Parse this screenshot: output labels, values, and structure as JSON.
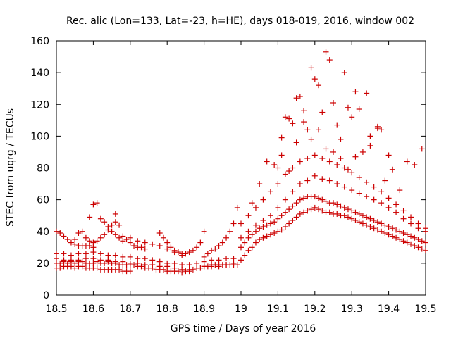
{
  "chart_data": {
    "type": "scatter",
    "title": "Rec. alic (Lon=133, Lat=-23, h=HE), days 018-019, 2016, window 002",
    "xlabel": "GPS time / Days of year 2016",
    "ylabel": "STEC from uqrg / TECUs",
    "xlim": [
      18.5,
      19.5
    ],
    "ylim": [
      0,
      160
    ],
    "xticks": [
      "18.5",
      "18.6",
      "18.7",
      "18.8",
      "18.9",
      "19",
      "19.1",
      "19.2",
      "19.3",
      "19.4",
      "19.5"
    ],
    "yticks": [
      "0",
      "20",
      "40",
      "60",
      "80",
      "100",
      "120",
      "140",
      "160"
    ],
    "grid": false,
    "legend": "none",
    "marker": "plus",
    "marker_color": "#cc0000",
    "series": [
      {
        "x": [
          18.5,
          18.51,
          18.52,
          18.53,
          18.54,
          18.55,
          18.56,
          18.57,
          18.58,
          18.59,
          18.6,
          18.61,
          18.62,
          18.63,
          18.64,
          18.65,
          18.66,
          18.67,
          18.68,
          18.69,
          18.7,
          18.71,
          18.72,
          18.73,
          18.74,
          18.75,
          18.76,
          18.77,
          18.78,
          18.79,
          18.8,
          18.81,
          18.82,
          18.83,
          18.84,
          18.85,
          18.86,
          18.87,
          18.88,
          18.89,
          18.9,
          18.91,
          18.92,
          18.93,
          18.94,
          18.95,
          18.96,
          18.97,
          18.98,
          18.99
        ],
        "y": [
          20,
          20,
          21,
          20,
          21,
          20,
          21,
          21,
          20,
          20,
          20,
          21,
          20,
          20,
          21,
          20,
          20,
          19,
          19,
          19,
          19,
          19,
          18,
          18,
          17,
          17,
          17,
          16,
          16,
          16,
          15,
          15,
          15,
          15,
          14,
          15,
          15,
          16,
          17,
          17,
          18,
          18,
          19,
          19,
          19,
          19,
          19,
          19,
          19,
          19
        ]
      },
      {
        "x": [
          18.5,
          18.52,
          18.54,
          18.56,
          18.58,
          18.6,
          18.62,
          18.64,
          18.66,
          18.68,
          18.7,
          18.72,
          18.74,
          18.76,
          18.78,
          18.8,
          18.82,
          18.84,
          18.86,
          18.88,
          18.9,
          18.92,
          18.94,
          18.96,
          18.98
        ],
        "y": [
          23,
          22,
          22,
          22,
          23,
          23,
          22,
          22,
          21,
          21,
          20,
          20,
          19,
          19,
          18,
          18,
          17,
          16,
          16,
          17,
          18,
          18,
          18,
          19,
          20
        ]
      },
      {
        "x": [
          18.5,
          18.52,
          18.54,
          18.56,
          18.58,
          18.6,
          18.62,
          18.64,
          18.66,
          18.68,
          18.7,
          18.72,
          18.74,
          18.76,
          18.78,
          18.8,
          18.82,
          18.84,
          18.86,
          18.88,
          18.9,
          18.92,
          18.94,
          18.96,
          18.98
        ],
        "y": [
          26,
          26,
          25,
          26,
          26,
          27,
          26,
          25,
          25,
          24,
          24,
          23,
          23,
          22,
          21,
          20,
          20,
          19,
          19,
          20,
          21,
          22,
          22,
          23,
          23
        ]
      },
      {
        "x": [
          18.5,
          18.51,
          18.52,
          18.53,
          18.54,
          18.55,
          18.56,
          18.57,
          18.58,
          18.59,
          18.6,
          18.61,
          18.62,
          18.63,
          18.64,
          18.65,
          18.66,
          18.67,
          18.68,
          18.69,
          18.7
        ],
        "y": [
          17,
          17,
          18,
          18,
          18,
          17,
          18,
          18,
          17,
          17,
          17,
          17,
          16,
          16,
          16,
          16,
          16,
          16,
          15,
          15,
          15
        ]
      },
      {
        "x": [
          18.5,
          18.51,
          18.52,
          18.53,
          18.54,
          18.55,
          18.56,
          18.57,
          18.58,
          18.59,
          18.6
        ],
        "y": [
          40,
          39,
          37,
          35,
          33,
          32,
          31,
          31,
          31,
          31,
          30
        ]
      },
      {
        "x": [
          18.55,
          18.56,
          18.57,
          18.58,
          18.59,
          18.6,
          18.61,
          18.62,
          18.63,
          18.64,
          18.65,
          18.66
        ],
        "y": [
          35,
          39,
          40,
          36,
          34,
          33,
          34,
          36,
          38,
          41,
          44,
          46
        ]
      },
      {
        "x": [
          18.59,
          18.6,
          18.61,
          18.62,
          18.63,
          18.64,
          18.65,
          18.66,
          18.67,
          18.68
        ],
        "y": [
          49,
          57,
          58,
          48,
          46,
          43,
          40,
          38,
          36,
          34
        ]
      },
      {
        "x": [
          18.66,
          18.67,
          18.68,
          18.69,
          18.7,
          18.71,
          18.72,
          18.73,
          18.74
        ],
        "y": [
          51,
          44,
          37,
          35,
          33,
          31,
          30,
          30,
          29
        ]
      },
      {
        "x": [
          18.7,
          18.72,
          18.74,
          18.76,
          18.78,
          18.8,
          18.82,
          18.84
        ],
        "y": [
          36,
          34,
          33,
          32,
          31,
          29,
          27,
          25
        ]
      },
      {
        "x": [
          18.78,
          18.79,
          18.8,
          18.81,
          18.82,
          18.83,
          18.84,
          18.85,
          18.86,
          18.87,
          18.88,
          18.89,
          18.9
        ],
        "y": [
          39,
          36,
          33,
          30,
          28,
          27,
          26,
          26,
          27,
          28,
          30,
          33,
          40
        ]
      },
      {
        "x": [
          18.9,
          18.91,
          18.92,
          18.93,
          18.94,
          18.95,
          18.96,
          18.97,
          18.98,
          18.99
        ],
        "y": [
          24,
          26,
          28,
          29,
          31,
          33,
          36,
          40,
          45,
          55
        ]
      },
      {
        "x": [
          19.0,
          19.01,
          19.02,
          19.03,
          19.04,
          19.05,
          19.06,
          19.07,
          19.08,
          19.09,
          19.1,
          19.11,
          19.12,
          19.13,
          19.14,
          19.15,
          19.16,
          19.17,
          19.18,
          19.19,
          19.2,
          19.21,
          19.22,
          19.23,
          19.24,
          19.25,
          19.26,
          19.27,
          19.28,
          19.29,
          19.3,
          19.31,
          19.32,
          19.33,
          19.34,
          19.35,
          19.36,
          19.37,
          19.38,
          19.39,
          19.4,
          19.41,
          19.42,
          19.43,
          19.44,
          19.45,
          19.46,
          19.47,
          19.48,
          19.49,
          19.5
        ],
        "y": [
          22,
          25,
          28,
          30,
          33,
          35,
          36,
          37,
          38,
          39,
          40,
          41,
          43,
          45,
          47,
          49,
          51,
          52,
          53,
          54,
          55,
          54,
          53,
          52,
          52,
          51,
          51,
          50,
          50,
          49,
          48,
          47,
          46,
          45,
          44,
          43,
          42,
          41,
          40,
          39,
          38,
          37,
          36,
          35,
          34,
          33,
          32,
          31,
          30,
          29,
          28
        ]
      },
      {
        "x": [
          19.0,
          19.01,
          19.02,
          19.03,
          19.04,
          19.05,
          19.06,
          19.07,
          19.08,
          19.09,
          19.1,
          19.11,
          19.12,
          19.13,
          19.14,
          19.15,
          19.16,
          19.17,
          19.18,
          19.19,
          19.2,
          19.21,
          19.22,
          19.23,
          19.24,
          19.25,
          19.26,
          19.27,
          19.28,
          19.29,
          19.3,
          19.31,
          19.32,
          19.33,
          19.34,
          19.35,
          19.36,
          19.37,
          19.38,
          19.39,
          19.4,
          19.41,
          19.42,
          19.43,
          19.44,
          19.45,
          19.46,
          19.47,
          19.48,
          19.49,
          19.5
        ],
        "y": [
          30,
          33,
          36,
          38,
          40,
          42,
          43,
          44,
          45,
          46,
          48,
          50,
          52,
          54,
          56,
          58,
          60,
          61,
          62,
          62,
          62,
          61,
          60,
          59,
          58,
          58,
          57,
          56,
          55,
          54,
          53,
          52,
          51,
          50,
          49,
          48,
          47,
          46,
          45,
          44,
          43,
          42,
          41,
          40,
          39,
          38,
          37,
          36,
          35,
          34,
          33
        ]
      },
      {
        "x": [
          19.0,
          19.02,
          19.04,
          19.06,
          19.08,
          19.1,
          19.12,
          19.14,
          19.16,
          19.18,
          19.2,
          19.22,
          19.24,
          19.26,
          19.28,
          19.3,
          19.32,
          19.34,
          19.36,
          19.38,
          19.4,
          19.42,
          19.44,
          19.46,
          19.48,
          19.5
        ],
        "y": [
          36,
          40,
          44,
          47,
          50,
          55,
          60,
          65,
          70,
          72,
          75,
          73,
          72,
          70,
          68,
          66,
          64,
          62,
          60,
          58,
          55,
          52,
          48,
          45,
          42,
          40
        ]
      },
      {
        "x": [
          19.0,
          19.02,
          19.04,
          19.06,
          19.08,
          19.1,
          19.12,
          19.14,
          19.16,
          19.18,
          19.2,
          19.22,
          19.24,
          19.26,
          19.28,
          19.3,
          19.32,
          19.34,
          19.36,
          19.38,
          19.4,
          19.42,
          19.44,
          19.46,
          19.48,
          19.5
        ],
        "y": [
          45,
          50,
          55,
          60,
          65,
          70,
          76,
          80,
          84,
          86,
          88,
          86,
          84,
          82,
          80,
          77,
          74,
          71,
          68,
          65,
          61,
          57,
          53,
          49,
          45,
          42
        ]
      },
      {
        "x": [
          19.03,
          19.05,
          19.07,
          19.09,
          19.11,
          19.13,
          19.15,
          19.17,
          19.19,
          19.21,
          19.23,
          19.25,
          19.27,
          19.29,
          19.31,
          19.33,
          19.35,
          19.37,
          19.39,
          19.41,
          19.43,
          19.45,
          19.47,
          19.49
        ],
        "y": [
          58,
          70,
          84,
          82,
          88,
          78,
          96,
          109,
          98,
          104,
          92,
          90,
          86,
          79,
          87,
          90,
          94,
          105,
          72,
          79,
          66,
          84,
          82,
          92
        ]
      },
      {
        "x": [
          19.1,
          19.11,
          19.12,
          19.13,
          19.14,
          19.15,
          19.16,
          19.17,
          19.18,
          19.19,
          19.2,
          19.21,
          19.22,
          19.23,
          19.24,
          19.25,
          19.26,
          19.27,
          19.28,
          19.29,
          19.3,
          19.31,
          19.32,
          19.34,
          19.35,
          19.37,
          19.38,
          19.4
        ],
        "y": [
          80,
          99,
          112,
          111,
          108,
          124,
          125,
          116,
          104,
          143,
          136,
          132,
          115,
          153,
          148,
          121,
          107,
          98,
          140,
          118,
          112,
          128,
          117,
          127,
          100,
          106,
          104,
          88
        ]
      }
    ]
  }
}
